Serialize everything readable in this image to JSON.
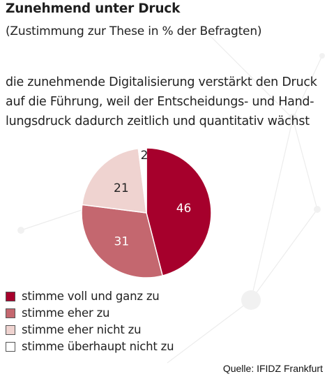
{
  "title": "Zunehmend unter Druck",
  "subtitle": "(Zustimmung zur These in % der Befragten)",
  "question_lines": [
    "die zunehmende Digitalisierung verstärkt den Druck",
    "auf die Führung, weil der Entscheidungs- und Hand-",
    "lungsdruck dadurch zeitlich und quantitativ wächst"
  ],
  "source": "Quelle: IFIDZ Frankfurt",
  "chart_data": {
    "type": "pie",
    "unit": "%",
    "slices": [
      {
        "label": "stimme voll und ganz zu",
        "value": 46,
        "color": "#a6002c"
      },
      {
        "label": "stimme eher zu",
        "value": 31,
        "color": "#c4676f"
      },
      {
        "label": "stimme eher nicht zu",
        "value": 21,
        "color": "#efd3d0"
      },
      {
        "label": "stimme überhaupt nicht zu",
        "value": 2,
        "color": "#ffffff"
      }
    ],
    "legend_position": "bottom-left"
  }
}
